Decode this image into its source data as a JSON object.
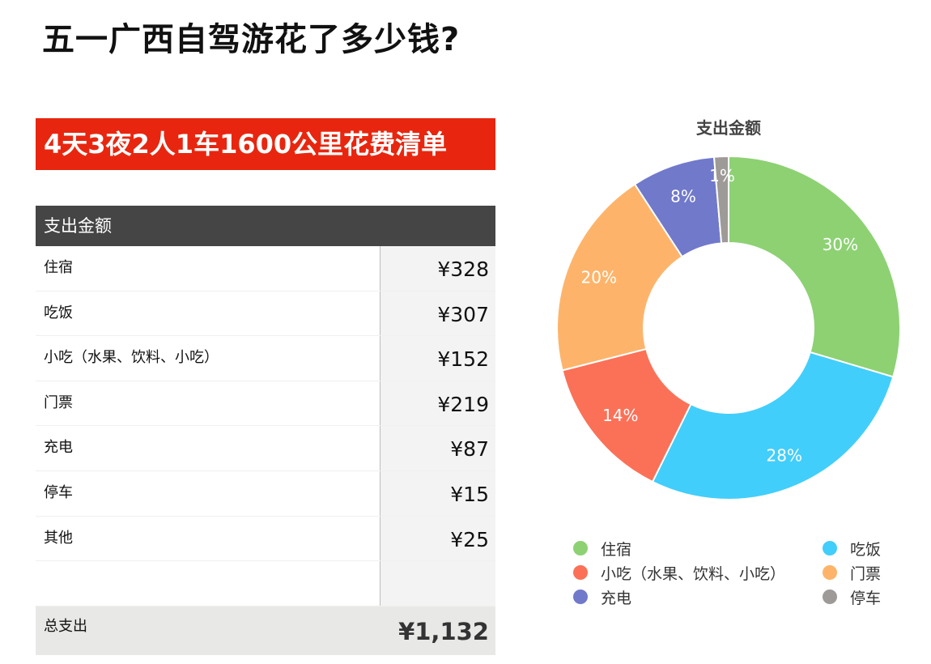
{
  "title": "五一广西自驾游花了多少钱?",
  "banner": "4天3夜2人1车1600公里花费清单",
  "table": {
    "header": "支出金额",
    "rows": [
      {
        "label": "住宿",
        "value": "¥328"
      },
      {
        "label": "吃饭",
        "value": "¥307"
      },
      {
        "label": "小吃（水果、饮料、小吃）",
        "value": "¥152"
      },
      {
        "label": "门票",
        "value": "¥219"
      },
      {
        "label": "充电",
        "value": "¥87"
      },
      {
        "label": "停车",
        "value": "¥15"
      },
      {
        "label": "其他",
        "value": "¥25"
      }
    ],
    "total_label": "总支出",
    "total_value": "¥1,132"
  },
  "chart_data": {
    "type": "pie",
    "title": "支出金额",
    "donut": true,
    "slices": [
      {
        "name": "住宿",
        "value": 328,
        "percent_label": "30%",
        "color": "#8dd173"
      },
      {
        "name": "吃饭",
        "value": 307,
        "percent_label": "28%",
        "color": "#42cefa"
      },
      {
        "name": "小吃（水果、饮料、小吃）",
        "value": 152,
        "percent_label": "14%",
        "color": "#fb7157"
      },
      {
        "name": "门票",
        "value": 219,
        "percent_label": "20%",
        "color": "#fdb46a"
      },
      {
        "name": "充电",
        "value": 87,
        "percent_label": "8%",
        "color": "#7179cb"
      },
      {
        "name": "停车",
        "value": 15,
        "percent_label": "1%",
        "color": "#9e9a97"
      }
    ],
    "legend_position": "bottom"
  },
  "colors": {
    "banner_bg": "#e8260f",
    "table_header_bg": "#454545",
    "value_cell_bg": "#f3f3f3",
    "total_row_bg": "#e8e8e6"
  }
}
